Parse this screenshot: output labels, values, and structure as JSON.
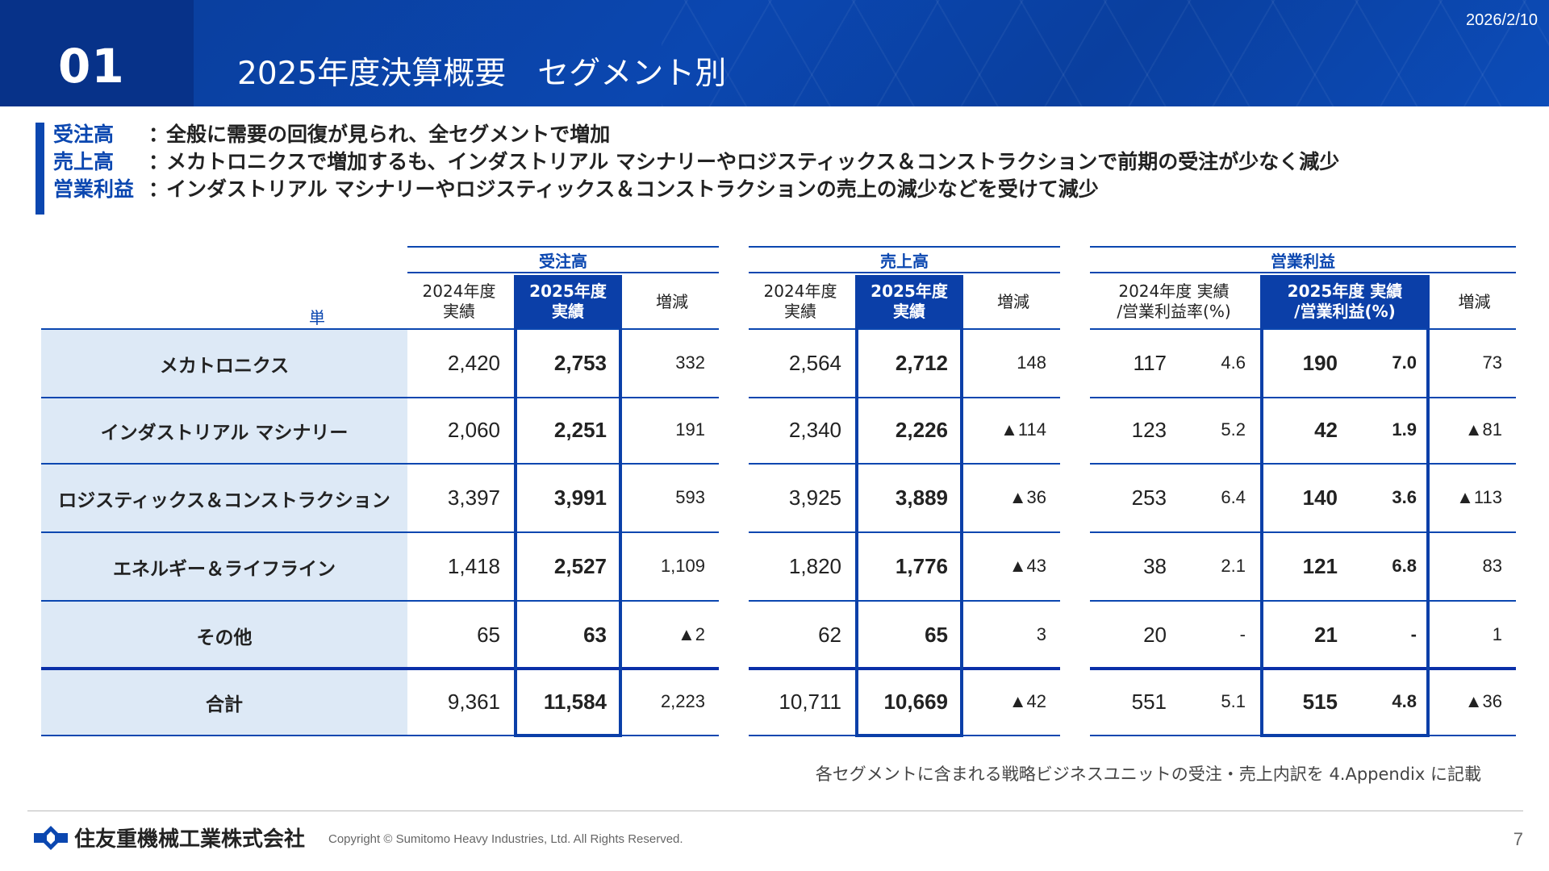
{
  "header": {
    "number": "01",
    "title": "2025年度決算概要　セグメント別",
    "date": "2026/2/10"
  },
  "summary": [
    {
      "key": "受注高",
      "colon": "：",
      "text": "全般に需要の回復が見られ、全セグメントで増加"
    },
    {
      "key": "売上高",
      "colon": "：",
      "text": "メカトロニクスで増加するも、インダストリアル マシナリーやロジスティックス＆コンストラクションで前期の受注が少なく減少"
    },
    {
      "key": "営業利益",
      "colon": "：",
      "text": "インダストリアル マシナリーやロジスティックス＆コンストラクションの売上の減少などを受けて減少"
    }
  ],
  "table": {
    "unit": "単位：億円",
    "groups": [
      "受注高",
      "売上高",
      "営業利益"
    ],
    "subheaders": {
      "orders": [
        "2024年度\n実績",
        "2025年度\n実績",
        "増減"
      ],
      "sales": [
        "2024年度\n実績",
        "2025年度\n実績",
        "増減"
      ],
      "profit": [
        "2024年度 実績\n/営業利益率(%)",
        "2025年度 実績\n/営業利益(%)",
        "増減"
      ]
    },
    "rows": [
      {
        "segment": "メカトロニクス",
        "o24": "2,420",
        "o25": "2,753",
        "od": "332",
        "s24": "2,564",
        "s25": "2,712",
        "sd": "148",
        "p24": "117",
        "p24r": "4.6",
        "p25": "190",
        "p25r": "7.0",
        "pd": "73"
      },
      {
        "segment": "インダストリアル マシナリー",
        "o24": "2,060",
        "o25": "2,251",
        "od": "191",
        "s24": "2,340",
        "s25": "2,226",
        "sd": "▲114",
        "p24": "123",
        "p24r": "5.2",
        "p25": "42",
        "p25r": "1.9",
        "pd": "▲81"
      },
      {
        "segment": "ロジスティックス＆コンストラクション",
        "o24": "3,397",
        "o25": "3,991",
        "od": "593",
        "s24": "3,925",
        "s25": "3,889",
        "sd": "▲36",
        "p24": "253",
        "p24r": "6.4",
        "p25": "140",
        "p25r": "3.6",
        "pd": "▲113"
      },
      {
        "segment": "エネルギー＆ライフライン",
        "o24": "1,418",
        "o25": "2,527",
        "od": "1,109",
        "s24": "1,820",
        "s25": "1,776",
        "sd": "▲43",
        "p24": "38",
        "p24r": "2.1",
        "p25": "121",
        "p25r": "6.8",
        "pd": "83"
      },
      {
        "segment": "その他",
        "o24": "65",
        "o25": "63",
        "od": "▲2",
        "s24": "62",
        "s25": "65",
        "sd": "3",
        "p24": "20",
        "p24r": "-",
        "p25": "21",
        "p25r": "-",
        "pd": "1"
      },
      {
        "segment": "合計",
        "o24": "9,361",
        "o25": "11,584",
        "od": "2,223",
        "s24": "10,711",
        "s25": "10,669",
        "sd": "▲42",
        "p24": "551",
        "p24r": "5.1",
        "p25": "515",
        "p25r": "4.8",
        "pd": "▲36"
      }
    ]
  },
  "note": "各セグメントに含まれる戦略ビジネスユニットの受注・売上内訳を 4.Appendix に記載",
  "footer": {
    "company": "住友重機械工業株式会社",
    "copyright": "Copyright © Sumitomo Heavy Industries, Ltd. All Rights Reserved.",
    "page": "7"
  }
}
